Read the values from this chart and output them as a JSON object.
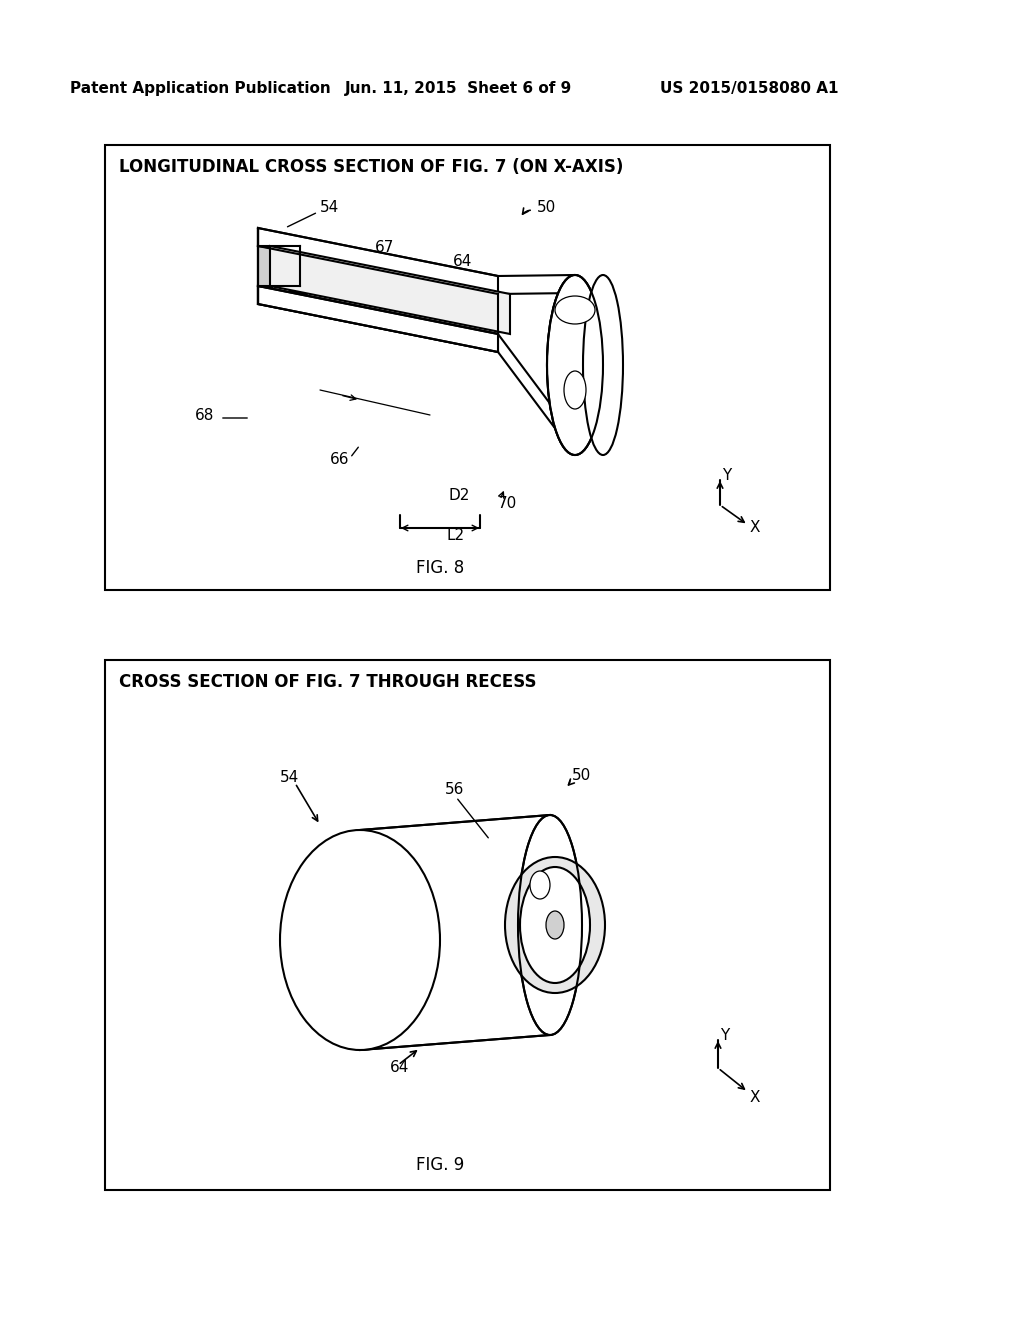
{
  "background_color": "#ffffff",
  "header_left": "Patent Application Publication",
  "header_center": "Jun. 11, 2015  Sheet 6 of 9",
  "header_right": "US 2015/0158080 A1",
  "fig8_title": "LONGITUDINAL CROSS SECTION OF FIG. 7 (ON X-AXIS)",
  "fig8_caption": "FIG. 8",
  "fig9_title": "CROSS SECTION OF FIG. 7 THROUGH RECESS",
  "fig9_caption": "FIG. 9",
  "lw": 1.5,
  "lw_thin": 0.9
}
